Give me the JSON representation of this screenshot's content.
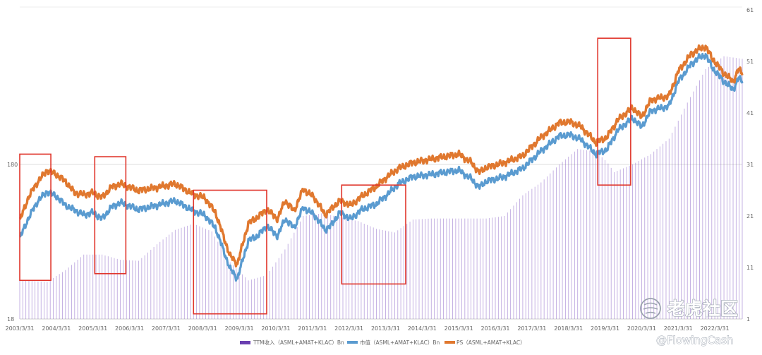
{
  "chart_data": {
    "type": "bar+line",
    "title": "",
    "x_tick_labels": [
      "2003/3/31",
      "2004/3/31",
      "2005/3/31",
      "2006/3/31",
      "2007/3/31",
      "2008/3/31",
      "2009/3/31",
      "2010/3/31",
      "2011/3/31",
      "2012/3/31",
      "2013/3/31",
      "2014/3/31",
      "2015/3/31",
      "2016/3/31",
      "2017/3/31",
      "2018/3/31",
      "2019/3/31",
      "2020/3/31",
      "2021/3/31",
      "2022/3/31"
    ],
    "y_left": {
      "scale": "log",
      "ticks": [
        "18",
        "180"
      ],
      "min": 18,
      "max": 1800
    },
    "y_right": {
      "ticks": [
        "1",
        "11",
        "21",
        "31",
        "41",
        "51",
        "61"
      ],
      "min": 1,
      "max": 61
    },
    "start_year": 2003.25,
    "end_year": 2023.0,
    "bar_series": {
      "name": "TTM收入（ASML+AMAT+KLAC）Bn",
      "color": "#8a62c6",
      "anchors": [
        [
          2003.25,
          8.5
        ],
        [
          2004.0,
          8.2
        ],
        [
          2004.5,
          10.5
        ],
        [
          2005.0,
          13.5
        ],
        [
          2005.5,
          13.5
        ],
        [
          2006.0,
          12.5
        ],
        [
          2006.5,
          12.3
        ],
        [
          2007.0,
          15.5
        ],
        [
          2007.5,
          18.3
        ],
        [
          2008.0,
          19.5
        ],
        [
          2008.5,
          18.0
        ],
        [
          2009.0,
          12.0
        ],
        [
          2009.5,
          8.5
        ],
        [
          2010.0,
          9.5
        ],
        [
          2010.5,
          14.5
        ],
        [
          2011.0,
          21.0
        ],
        [
          2011.5,
          21.5
        ],
        [
          2012.0,
          20.8
        ],
        [
          2012.5,
          20.0
        ],
        [
          2013.0,
          18.5
        ],
        [
          2013.5,
          17.8
        ],
        [
          2014.0,
          20.3
        ],
        [
          2014.5,
          20.5
        ],
        [
          2015.0,
          20.5
        ],
        [
          2015.5,
          20.5
        ],
        [
          2016.0,
          20.5
        ],
        [
          2016.5,
          21.0
        ],
        [
          2017.0,
          25.0
        ],
        [
          2017.5,
          27.5
        ],
        [
          2018.0,
          31.0
        ],
        [
          2018.5,
          34.0
        ],
        [
          2019.0,
          33.5
        ],
        [
          2019.3,
          31.5
        ],
        [
          2019.5,
          29.5
        ],
        [
          2020.0,
          31.0
        ],
        [
          2020.5,
          33.0
        ],
        [
          2021.0,
          36.0
        ],
        [
          2021.5,
          43.0
        ],
        [
          2022.0,
          49.5
        ],
        [
          2022.5,
          52.0
        ],
        [
          2023.0,
          51.5
        ]
      ]
    },
    "line_series": [
      {
        "name": "市值（ASML+AMAT+KLAC）Bn",
        "color": "#5a9bd0",
        "anchors": [
          [
            2003.25,
            60
          ],
          [
            2003.5,
            82
          ],
          [
            2003.75,
            105
          ],
          [
            2004.0,
            120
          ],
          [
            2004.25,
            112
          ],
          [
            2004.5,
            98
          ],
          [
            2005.0,
            85
          ],
          [
            2005.25,
            88
          ],
          [
            2005.5,
            80
          ],
          [
            2005.75,
            95
          ],
          [
            2006.0,
            102
          ],
          [
            2006.5,
            92
          ],
          [
            2007.0,
            98
          ],
          [
            2007.5,
            105
          ],
          [
            2008.0,
            90
          ],
          [
            2008.3,
            85
          ],
          [
            2008.6,
            70
          ],
          [
            2009.0,
            38
          ],
          [
            2009.2,
            33
          ],
          [
            2009.5,
            58
          ],
          [
            2009.75,
            62
          ],
          [
            2010.0,
            72
          ],
          [
            2010.3,
            62
          ],
          [
            2010.5,
            80
          ],
          [
            2010.75,
            70
          ],
          [
            2011.0,
            95
          ],
          [
            2011.3,
            85
          ],
          [
            2011.6,
            68
          ],
          [
            2011.75,
            72
          ],
          [
            2012.0,
            88
          ],
          [
            2012.3,
            80
          ],
          [
            2012.6,
            92
          ],
          [
            2013.0,
            100
          ],
          [
            2013.3,
            115
          ],
          [
            2013.6,
            135
          ],
          [
            2014.0,
            150
          ],
          [
            2014.5,
            155
          ],
          [
            2015.0,
            162
          ],
          [
            2015.25,
            165
          ],
          [
            2015.6,
            145
          ],
          [
            2015.8,
            128
          ],
          [
            2016.0,
            140
          ],
          [
            2016.5,
            150
          ],
          [
            2017.0,
            170
          ],
          [
            2017.5,
            220
          ],
          [
            2018.0,
            275
          ],
          [
            2018.3,
            280
          ],
          [
            2018.6,
            260
          ],
          [
            2019.0,
            210
          ],
          [
            2019.3,
            225
          ],
          [
            2019.6,
            300
          ],
          [
            2020.0,
            360
          ],
          [
            2020.25,
            315
          ],
          [
            2020.5,
            400
          ],
          [
            2021.0,
            430
          ],
          [
            2021.25,
            620
          ],
          [
            2021.6,
            800
          ],
          [
            2021.8,
            880
          ],
          [
            2022.0,
            920
          ],
          [
            2022.2,
            750
          ],
          [
            2022.5,
            620
          ],
          [
            2022.75,
            550
          ],
          [
            2022.9,
            650
          ],
          [
            2023.0,
            620
          ]
        ]
      },
      {
        "name": "PS（ASML+AMAT+KLAC）",
        "color": "#e0782f",
        "anchors": [
          [
            2003.25,
            78
          ],
          [
            2003.5,
            112
          ],
          [
            2003.75,
            140
          ],
          [
            2004.0,
            165
          ],
          [
            2004.25,
            155
          ],
          [
            2004.5,
            140
          ],
          [
            2004.75,
            118
          ],
          [
            2005.0,
            115
          ],
          [
            2005.25,
            118
          ],
          [
            2005.5,
            110
          ],
          [
            2005.75,
            128
          ],
          [
            2006.0,
            135
          ],
          [
            2006.5,
            122
          ],
          [
            2007.0,
            128
          ],
          [
            2007.5,
            135
          ],
          [
            2008.0,
            115
          ],
          [
            2008.3,
            110
          ],
          [
            2008.6,
            88
          ],
          [
            2009.0,
            46
          ],
          [
            2009.2,
            41
          ],
          [
            2009.5,
            75
          ],
          [
            2009.75,
            82
          ],
          [
            2010.0,
            92
          ],
          [
            2010.3,
            80
          ],
          [
            2010.5,
            105
          ],
          [
            2010.75,
            90
          ],
          [
            2011.0,
            125
          ],
          [
            2011.3,
            110
          ],
          [
            2011.6,
            85
          ],
          [
            2011.75,
            92
          ],
          [
            2012.0,
            105
          ],
          [
            2012.3,
            98
          ],
          [
            2012.6,
            112
          ],
          [
            2013.0,
            130
          ],
          [
            2013.3,
            150
          ],
          [
            2013.6,
            170
          ],
          [
            2014.0,
            185
          ],
          [
            2014.5,
            195
          ],
          [
            2015.0,
            205
          ],
          [
            2015.25,
            210
          ],
          [
            2015.6,
            185
          ],
          [
            2015.8,
            160
          ],
          [
            2016.0,
            172
          ],
          [
            2016.5,
            185
          ],
          [
            2017.0,
            205
          ],
          [
            2017.5,
            270
          ],
          [
            2018.0,
            335
          ],
          [
            2018.3,
            340
          ],
          [
            2018.6,
            315
          ],
          [
            2019.0,
            250
          ],
          [
            2019.3,
            270
          ],
          [
            2019.6,
            350
          ],
          [
            2020.0,
            420
          ],
          [
            2020.25,
            365
          ],
          [
            2020.5,
            470
          ],
          [
            2021.0,
            500
          ],
          [
            2021.25,
            720
          ],
          [
            2021.6,
            930
          ],
          [
            2021.8,
            1000
          ],
          [
            2022.0,
            1040
          ],
          [
            2022.2,
            860
          ],
          [
            2022.5,
            700
          ],
          [
            2022.75,
            620
          ],
          [
            2022.9,
            740
          ],
          [
            2023.0,
            700
          ]
        ]
      }
    ],
    "highlight_boxes": [
      {
        "x_from": 2003.25,
        "x_to": 2004.1,
        "y_from": 8.5,
        "y_to": 33.0
      },
      {
        "x_from": 2005.3,
        "x_to": 2006.15,
        "y_from": 9.8,
        "y_to": 32.5
      },
      {
        "x_from": 2008.0,
        "x_to": 2010.0,
        "y_from": 2.0,
        "y_to": 26.0
      },
      {
        "x_from": 2012.05,
        "x_to": 2013.8,
        "y_from": 7.8,
        "y_to": 27.0
      },
      {
        "x_from": 2019.05,
        "x_to": 2019.95,
        "y_from": 27.0,
        "y_to": 55.5
      }
    ],
    "grid": "horizontal",
    "legend_position": "bottom-center"
  },
  "watermark": {
    "brand": "老虎社区",
    "handle": "@FlowingCash"
  }
}
